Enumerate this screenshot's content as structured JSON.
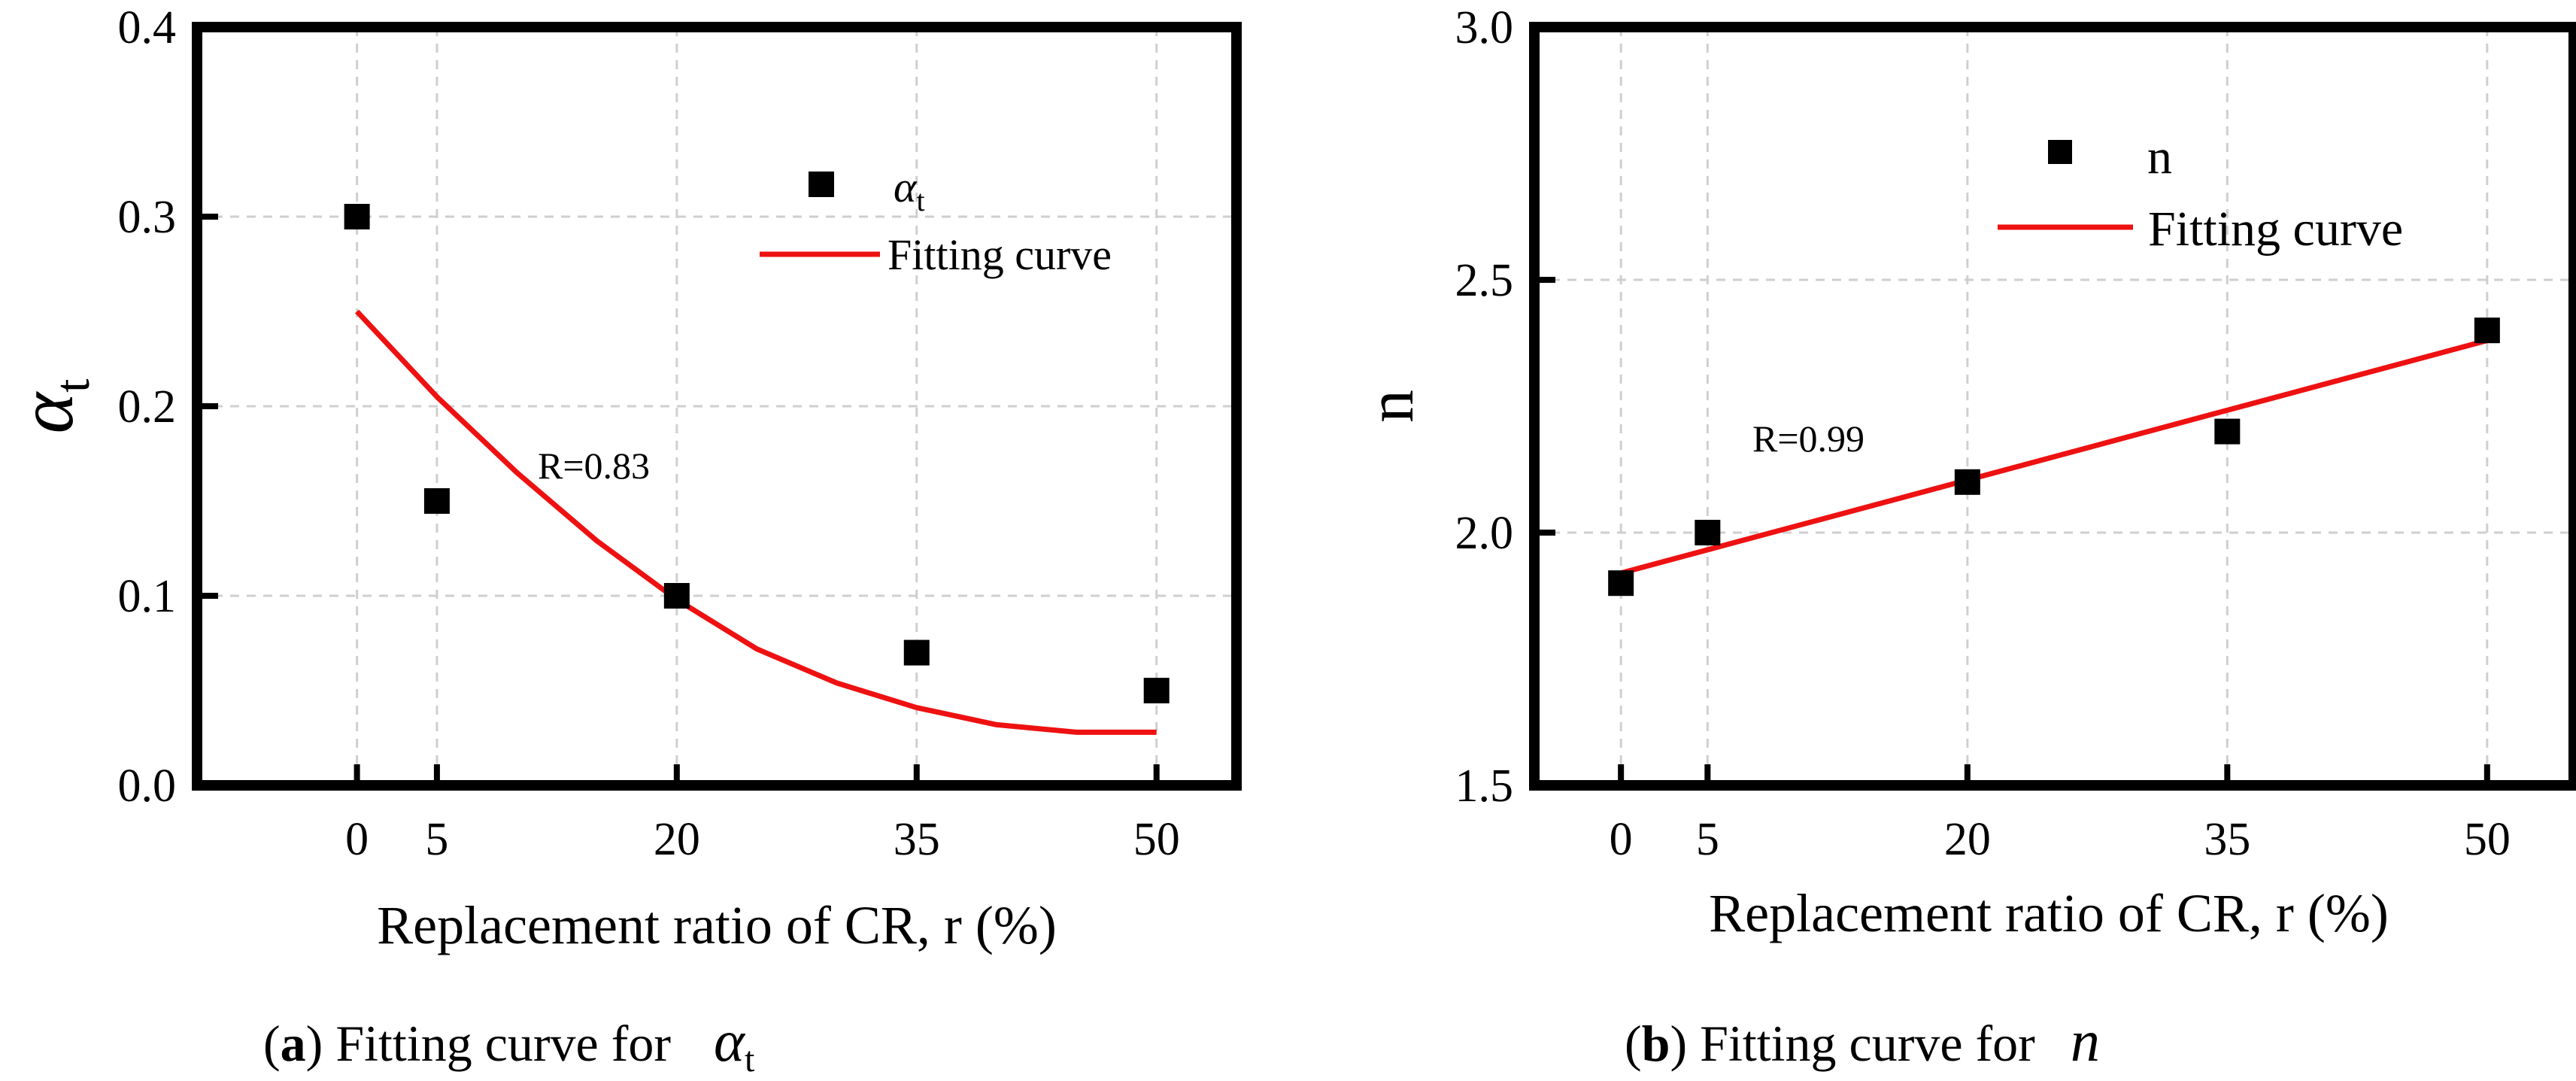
{
  "colors": {
    "fit": "#ee1111",
    "marker": "#000000",
    "grid": "#cfcfcf",
    "frame": "#000000"
  },
  "chart_data": [
    {
      "type": "scatter",
      "panel": "a",
      "xlabel": "Replacement ratio of CR, r (%)",
      "ylabel": "α",
      "ylabel_sub": "t",
      "xlim": [
        -10,
        55
      ],
      "ylim": [
        0,
        0.4
      ],
      "xticks": [
        0,
        5,
        20,
        35,
        50
      ],
      "xtick_labels": [
        "0",
        "5",
        "20",
        "35",
        "50"
      ],
      "yticks": [
        0,
        0.1,
        0.2,
        0.3,
        0.4
      ],
      "ytick_labels": [
        "0.0",
        "0.1",
        "0.2",
        "0.3",
        "0.4"
      ],
      "series": [
        {
          "name": "α",
          "name_sub": "t",
          "kind": "points",
          "x": [
            0,
            5,
            20,
            35,
            50
          ],
          "y": [
            0.3,
            0.15,
            0.1,
            0.07,
            0.05
          ]
        },
        {
          "name": "Fitting curve",
          "kind": "line",
          "x": [
            0,
            5,
            10,
            15,
            20,
            25,
            30,
            35,
            40,
            45,
            50
          ],
          "y": [
            0.25,
            0.205,
            0.165,
            0.129,
            0.098,
            0.072,
            0.054,
            0.041,
            0.032,
            0.028,
            0.028
          ]
        }
      ],
      "annotation": "R=0.83",
      "legend_position": "top-right",
      "caption": {
        "label": "a",
        "text": " Fitting curve for ",
        "symbol": "α",
        "symbol_sub": "t"
      }
    },
    {
      "type": "scatter",
      "panel": "b",
      "xlabel": "Replacement ratio of CR, r (%)",
      "ylabel": "n",
      "xlim": [
        -5,
        55
      ],
      "ylim": [
        1.5,
        3.0
      ],
      "xticks": [
        0,
        5,
        20,
        35,
        50
      ],
      "xtick_labels": [
        "0",
        "5",
        "20",
        "35",
        "50"
      ],
      "yticks": [
        1.5,
        2.0,
        2.5,
        3.0
      ],
      "ytick_labels": [
        "1.5",
        "2.0",
        "2.5",
        "3.0"
      ],
      "series": [
        {
          "name": "n",
          "kind": "points",
          "x": [
            0,
            5,
            20,
            35,
            50
          ],
          "y": [
            1.9,
            2.0,
            2.1,
            2.2,
            2.4
          ]
        },
        {
          "name": "Fitting curve",
          "kind": "line",
          "x": [
            0,
            50
          ],
          "y": [
            1.92,
            2.38
          ]
        }
      ],
      "annotation": "R=0.99",
      "legend_position": "top-right",
      "caption": {
        "label": "b",
        "text": " Fitting curve for ",
        "symbol": "n"
      }
    }
  ]
}
